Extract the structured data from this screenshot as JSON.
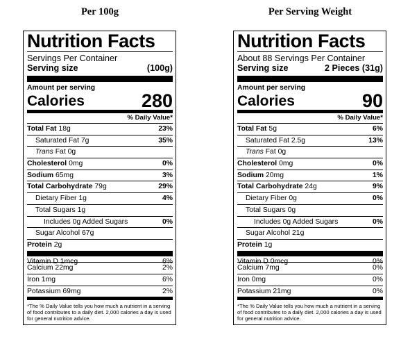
{
  "columns": [
    {
      "heading": "Per 100g",
      "label": {
        "title": "Nutrition Facts",
        "servings": "Servings Per Container",
        "serving_size_label": "Serving size",
        "serving_size_value": "(100g)",
        "amount_per_serving": "Amount per serving",
        "calories_label": "Calories",
        "calories_value": "280",
        "dv_header": "% Daily Value*",
        "total_fat": {
          "label": "Total Fat",
          "amount": "18g",
          "dv": "23%"
        },
        "saturated_fat": {
          "label": "Saturated Fat",
          "amount": "7g",
          "dv": "35%"
        },
        "trans_fat": {
          "label": "Trans",
          "suffix": "Fat",
          "amount": "0g"
        },
        "cholesterol": {
          "label": "Cholesterol",
          "amount": "0mg",
          "dv": "0%"
        },
        "sodium": {
          "label": "Sodium",
          "amount": "65mg",
          "dv": "3%"
        },
        "total_carb": {
          "label": "Total Carbohydrate",
          "amount": "79g",
          "dv": "29%"
        },
        "dietary_fiber": {
          "label": "Dietary Fiber",
          "amount": "1g",
          "dv": "4%"
        },
        "total_sugars": {
          "label": "Total Sugars",
          "amount": "1g"
        },
        "added_sugars": {
          "label": "Includes 0g Added Sugars",
          "dv": "0%"
        },
        "sugar_alcohol": {
          "label": "Sugar Alcohol",
          "amount": "67g"
        },
        "protein": {
          "label": "Protein",
          "amount": "2g"
        },
        "vitamin_d": {
          "label": "Vitamin D",
          "amount": "1mcg",
          "dv": "6%"
        },
        "calcium": {
          "label": "Calcium",
          "amount": "22mg",
          "dv": "2%"
        },
        "iron": {
          "label": "Iron",
          "amount": "1mg",
          "dv": "6%"
        },
        "potassium": {
          "label": "Potassium",
          "amount": "69mg",
          "dv": "2%"
        },
        "footnote": "*The % Daily Value tells you how much a nutrient in a serving of food contributes to a daily diet. 2,000 calories a day is used for general nutrition advice."
      }
    },
    {
      "heading": "Per Serving Weight",
      "label": {
        "title": "Nutrition Facts",
        "servings": "About 88 Servings Per Container",
        "serving_size_label": "Serving size",
        "serving_size_value": "2 Pieces (31g)",
        "amount_per_serving": "Amount per serving",
        "calories_label": "Calories",
        "calories_value": "90",
        "dv_header": "% Daily Value*",
        "total_fat": {
          "label": "Total Fat",
          "amount": "5g",
          "dv": "6%"
        },
        "saturated_fat": {
          "label": "Saturated Fat",
          "amount": "2.5g",
          "dv": "13%"
        },
        "trans_fat": {
          "label": "Trans",
          "suffix": "Fat",
          "amount": "0g"
        },
        "cholesterol": {
          "label": "Cholesterol",
          "amount": "0mg",
          "dv": "0%"
        },
        "sodium": {
          "label": "Sodium",
          "amount": "20mg",
          "dv": "1%"
        },
        "total_carb": {
          "label": "Total Carbohydrate",
          "amount": "24g",
          "dv": "9%"
        },
        "dietary_fiber": {
          "label": "Dietary Fiber",
          "amount": "0g",
          "dv": "0%"
        },
        "total_sugars": {
          "label": "Total Sugars",
          "amount": "0g"
        },
        "added_sugars": {
          "label": "Includes 0g Added Sugars",
          "dv": "0%"
        },
        "sugar_alcohol": {
          "label": "Sugar Alcohol",
          "amount": "21g"
        },
        "protein": {
          "label": "Protein",
          "amount": "1g"
        },
        "vitamin_d": {
          "label": "Vitamin D",
          "amount": "0mcg",
          "dv": "0%"
        },
        "calcium": {
          "label": "Calcium",
          "amount": "7mg",
          "dv": "0%"
        },
        "iron": {
          "label": "Iron",
          "amount": "0mg",
          "dv": "0%"
        },
        "potassium": {
          "label": "Potassium",
          "amount": "21mg",
          "dv": "0%"
        },
        "footnote": "*The % Daily Value tells you how much a nutrient in a serving of food contributes to a daily diet. 2,000 calories a day is used for general nutrition advice."
      }
    }
  ]
}
